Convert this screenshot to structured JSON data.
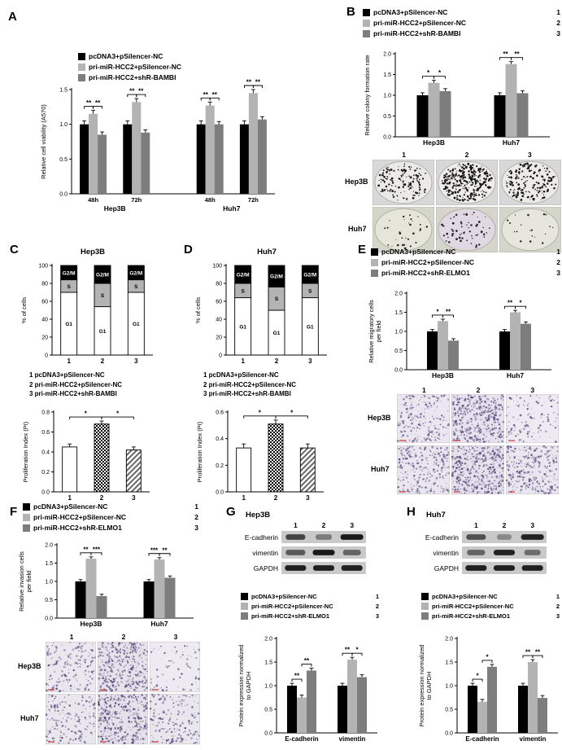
{
  "figure": {
    "bg": "#ffffff"
  },
  "colors": {
    "series1": "#000000",
    "series2": "#b3b3b3",
    "series3": "#7d7d7d",
    "axis": "#000000",
    "red_scale": "#cc3333"
  },
  "panels": {
    "A": {
      "label": "A",
      "legend": [
        {
          "color": "#000000",
          "label": "pcDNA3+pSilencer-NC"
        },
        {
          "color": "#b3b3b3",
          "label": "pri-miR-HCC2+pSilencer-NC"
        },
        {
          "color": "#7d7d7d",
          "label": "pri-miR-HCC2+shR-BAMBI"
        }
      ]
    },
    "B": {
      "label": "B",
      "legend": [
        {
          "color": "#000000",
          "label": "pcDNA3+pSilencer-NC",
          "num": "1"
        },
        {
          "color": "#b3b3b3",
          "label": "pri-miR-HCC2+pSilencer-NC",
          "num": "2"
        },
        {
          "color": "#7d7d7d",
          "label": "pri-miR-HCC2+shR-BAMBI",
          "num": "3"
        }
      ],
      "images": {
        "col_nums": [
          "1",
          "2",
          "3"
        ],
        "rows": [
          {
            "label": "Hep3B",
            "cells": [
              {
                "kind": "colony",
                "bg": "#d8d8d8",
                "dish": "#eceae6",
                "dot_color": "#151515",
                "count": 150,
                "seed": 11
              },
              {
                "kind": "colony",
                "bg": "#d8d8d8",
                "dish": "#efeeec",
                "dot_color": "#151515",
                "count": 330,
                "seed": 22
              },
              {
                "kind": "colony",
                "bg": "#d8d8d8",
                "dish": "#ecebe8",
                "dot_color": "#151515",
                "count": 170,
                "seed": 33
              }
            ]
          },
          {
            "label": "Huh7",
            "cells": [
              {
                "kind": "colony",
                "bg": "#d3d7c9",
                "dish": "#e6e5da",
                "dot_color": "#222222",
                "count": 30,
                "seed": 44
              },
              {
                "kind": "colony",
                "bg": "#d6d5cc",
                "dish": "#e0d8e2",
                "dot_color": "#222222",
                "count": 60,
                "seed": 55
              },
              {
                "kind": "colony",
                "bg": "#d3d7c9",
                "dish": "#e7e6dc",
                "dot_color": "#222222",
                "count": 20,
                "seed": 66
              }
            ]
          }
        ]
      }
    },
    "C": {
      "label": "C",
      "title": "Hep3B",
      "conditions": [
        "1 pcDNA3+pSilencer-NC",
        "2 pri-miR-HCC2+pSilencer-NC",
        "3 pri-miR-HCC2+shR-BAMBI"
      ]
    },
    "D": {
      "label": "D",
      "title": "Huh7",
      "conditions": [
        "1 pcDNA3+pSilencer-NC",
        "2 pri-miR-HCC2+pSilencer-NC",
        "3 pri-miR-HCC2+shR-BAMBI"
      ]
    },
    "E": {
      "label": "E",
      "legend": [
        {
          "color": "#000000",
          "label": "pcDNA3+pSilencer-NC",
          "num": "1"
        },
        {
          "color": "#b3b3b3",
          "label": "pri-miR-HCC2+pSilencer-NC",
          "num": "2"
        },
        {
          "color": "#7d7d7d",
          "label": "pri-miR-HCC2+shR-ELMO1",
          "num": "3"
        }
      ],
      "images": {
        "col_nums": [
          "1",
          "2",
          "3"
        ],
        "rows": [
          {
            "label": "Hep3B",
            "cells": [
              {
                "kind": "cells",
                "bg": "#eae7f0",
                "dot_color": "#5a4d7e",
                "count": 220,
                "seed": 101
              },
              {
                "kind": "cells",
                "bg": "#e6e2ee",
                "dot_color": "#554878",
                "count": 430,
                "seed": 102
              },
              {
                "kind": "cells",
                "bg": "#edeaf2",
                "dot_color": "#5a4d7e",
                "count": 120,
                "seed": 103
              }
            ]
          },
          {
            "label": "Huh7",
            "cells": [
              {
                "kind": "cells",
                "bg": "#e9e6ef",
                "dot_color": "#5a4d7e",
                "count": 260,
                "seed": 104
              },
              {
                "kind": "cells",
                "bg": "#e5e1ec",
                "dot_color": "#554878",
                "count": 440,
                "seed": 105
              },
              {
                "kind": "cells",
                "bg": "#e9e6ef",
                "dot_color": "#5a4d7e",
                "count": 300,
                "seed": 106
              }
            ]
          }
        ]
      }
    },
    "F": {
      "label": "F",
      "legend": [
        {
          "color": "#000000",
          "label": "pcDNA3+pSilencer-NC",
          "num": "1"
        },
        {
          "color": "#b3b3b3",
          "label": "pri-miR-HCC2+pSilencer-NC",
          "num": "2"
        },
        {
          "color": "#7d7d7d",
          "label": "pri-miR-HCC2+shR-ELMO1",
          "num": "3"
        }
      ],
      "images": {
        "col_nums": [
          "1",
          "2",
          "3"
        ],
        "rows": [
          {
            "label": "Hep3B",
            "cells": [
              {
                "kind": "cells",
                "bg": "#eae7ef",
                "dot_color": "#5a4d7e",
                "count": 180,
                "seed": 201
              },
              {
                "kind": "cells",
                "bg": "#e6e2ec",
                "dot_color": "#554878",
                "count": 400,
                "seed": 202
              },
              {
                "kind": "cells",
                "bg": "#edeaf1",
                "dot_color": "#5a4d7e",
                "count": 70,
                "seed": 203
              }
            ]
          },
          {
            "label": "Huh7",
            "cells": [
              {
                "kind": "cells",
                "bg": "#e9e6ee",
                "dot_color": "#5a4d7e",
                "count": 170,
                "seed": 204
              },
              {
                "kind": "cells",
                "bg": "#e5e1eb",
                "dot_color": "#554878",
                "count": 380,
                "seed": 205
              },
              {
                "kind": "cells",
                "bg": "#e9e6ee",
                "dot_color": "#5a4d7e",
                "count": 200,
                "seed": 206
              }
            ]
          }
        ]
      }
    },
    "G": {
      "label": "G",
      "title": "Hep3B",
      "blot": {
        "lane_nums": [
          "1",
          "2",
          "3"
        ],
        "rows": [
          {
            "label": "E-cadherin",
            "intensities": [
              0.72,
              0.42,
              0.95
            ],
            "widths": [
              24,
              20,
              28
            ]
          },
          {
            "label": "vimentin",
            "intensities": [
              0.6,
              0.95,
              0.55
            ],
            "widths": [
              24,
              27,
              22
            ]
          },
          {
            "label": "GAPDH",
            "intensities": [
              0.92,
              0.92,
              0.92
            ],
            "widths": [
              26,
              26,
              26
            ]
          }
        ]
      },
      "legend": [
        {
          "color": "#000000",
          "label": "pcDNA3+pSilencer-NC",
          "num": "1"
        },
        {
          "color": "#b3b3b3",
          "label": "pri-miR-HCC2+pSilencer-NC",
          "num": "2"
        },
        {
          "color": "#7d7d7d",
          "label": "pri-miR-HCC2+shR-ELMO1",
          "num": "3"
        }
      ]
    },
    "H": {
      "label": "H",
      "title": "Huh7",
      "blot": {
        "lane_nums": [
          "1",
          "2",
          "3"
        ],
        "rows": [
          {
            "label": "E-cadherin",
            "intensities": [
              0.65,
              0.35,
              0.9
            ],
            "widths": [
              24,
              18,
              28
            ]
          },
          {
            "label": "vimentin",
            "intensities": [
              0.55,
              0.9,
              0.5
            ],
            "widths": [
              22,
              26,
              20
            ]
          },
          {
            "label": "GAPDH",
            "intensities": [
              0.92,
              0.92,
              0.92
            ],
            "widths": [
              26,
              26,
              26
            ]
          }
        ]
      },
      "legend": [
        {
          "color": "#000000",
          "label": "pcDNA3+pSilencer-NC",
          "num": "1"
        },
        {
          "color": "#b3b3b3",
          "label": "pri-miR-HCC2+pSilencer-NC",
          "num": "2"
        },
        {
          "color": "#7d7d7d",
          "label": "pri-miR-HCC2+shR-ELMO1",
          "num": "3"
        }
      ]
    }
  },
  "chart_data": [
    {
      "id": "A",
      "type": "bar",
      "ylabel": "Relative cell viability (A570)",
      "ylim": [
        0,
        1.5
      ],
      "yticks": [
        0,
        0.5,
        1.0,
        1.5
      ],
      "categories": [
        "48h",
        "72h",
        "48h",
        "72h"
      ],
      "supergroups": [
        {
          "label": "Hep3B",
          "from": 0,
          "to": 1
        },
        {
          "label": "Huh7",
          "from": 2,
          "to": 3
        }
      ],
      "gap_after": [
        1
      ],
      "series": [
        {
          "name": "pcDNA3+pSilencer-NC",
          "color": "#000000",
          "values": [
            1.0,
            1.0,
            1.0,
            1.0
          ],
          "err": 0.05
        },
        {
          "name": "pri-miR-HCC2+pSilencer-NC",
          "color": "#b3b3b3",
          "values": [
            1.15,
            1.32,
            1.27,
            1.45
          ],
          "err": 0.05
        },
        {
          "name": "pri-miR-HCC2+shR-BAMBI",
          "color": "#7d7d7d",
          "values": [
            0.85,
            0.88,
            1.0,
            1.07
          ],
          "err": 0.04
        }
      ],
      "sig_within": [
        [
          "**",
          "**"
        ],
        [
          "**",
          "**"
        ],
        [
          "**",
          "**"
        ],
        [
          "**",
          "**"
        ]
      ]
    },
    {
      "id": "B",
      "type": "bar",
      "ylabel": "Relative colony formation rate",
      "ylim": [
        0,
        2.0
      ],
      "yticks": [
        0,
        0.5,
        1.0,
        1.5,
        2.0
      ],
      "categories": [
        "Hep3B",
        "Huh7"
      ],
      "series": [
        {
          "name": "pcDNA3+pSilencer-NC",
          "color": "#000000",
          "values": [
            1.0,
            1.0
          ],
          "err": 0.06
        },
        {
          "name": "pri-miR-HCC2+pSilencer-NC",
          "color": "#b3b3b3",
          "values": [
            1.3,
            1.75
          ],
          "err": 0.06
        },
        {
          "name": "pri-miR-HCC2+shR-BAMBI",
          "color": "#7d7d7d",
          "values": [
            1.1,
            1.05
          ],
          "err": 0.06
        }
      ],
      "sig_within": [
        [
          "*",
          "*"
        ],
        [
          "**",
          "**"
        ]
      ]
    },
    {
      "id": "C_cycle",
      "type": "stacked-bar",
      "title": "Hep3B",
      "ylabel": "% of cells",
      "ylim": [
        0,
        100
      ],
      "yticks": [
        0,
        20,
        40,
        60,
        80,
        100
      ],
      "categories": [
        "1",
        "2",
        "3"
      ],
      "series": [
        {
          "name": "G1",
          "color": "#ffffff",
          "text_color": "#000000",
          "values": [
            70,
            54,
            70
          ]
        },
        {
          "name": "S",
          "color": "#b3b3b3",
          "text_color": "#000000",
          "values": [
            14,
            26,
            14
          ]
        },
        {
          "name": "G2/M",
          "color": "#000000",
          "text_color": "#ffffff",
          "values": [
            16,
            20,
            16
          ]
        }
      ]
    },
    {
      "id": "C_pi",
      "type": "bar",
      "ylabel": "Proliferation Index (PI)",
      "ylim": [
        0,
        0.8
      ],
      "yticks": [
        0,
        0.2,
        0.4,
        0.6,
        0.8
      ],
      "categories": [
        "1",
        "2",
        "3"
      ],
      "series": [
        {
          "name": "PI",
          "values": [
            0.45,
            0.68,
            0.42
          ],
          "err": 0.03
        }
      ],
      "patterns": [
        "plain",
        "checker",
        "diag"
      ],
      "sig_across": [
        {
          "a": 0,
          "b": 1,
          "label": "*"
        },
        {
          "a": 1,
          "b": 2,
          "label": "*"
        }
      ]
    },
    {
      "id": "D_cycle",
      "type": "stacked-bar",
      "title": "Huh7",
      "ylabel": "% of cells",
      "ylim": [
        0,
        100
      ],
      "yticks": [
        0,
        20,
        40,
        60,
        80,
        100
      ],
      "categories": [
        "1",
        "2",
        "3"
      ],
      "series": [
        {
          "name": "G1",
          "color": "#ffffff",
          "text_color": "#000000",
          "values": [
            64,
            50,
            64
          ]
        },
        {
          "name": "S",
          "color": "#b3b3b3",
          "text_color": "#000000",
          "values": [
            16,
            26,
            16
          ]
        },
        {
          "name": "G2/M",
          "color": "#000000",
          "text_color": "#ffffff",
          "values": [
            20,
            24,
            20
          ]
        }
      ]
    },
    {
      "id": "D_pi",
      "type": "bar",
      "ylabel": "Proliferation Index (PI)",
      "ylim": [
        0,
        0.6
      ],
      "yticks": [
        0,
        0.2,
        0.4,
        0.6
      ],
      "categories": [
        "1",
        "2",
        "3"
      ],
      "series": [
        {
          "name": "PI",
          "values": [
            0.33,
            0.51,
            0.33
          ],
          "err": 0.03
        }
      ],
      "patterns": [
        "plain",
        "checker",
        "diag"
      ],
      "sig_across": [
        {
          "a": 0,
          "b": 1,
          "label": "*"
        },
        {
          "a": 1,
          "b": 2,
          "label": "*"
        }
      ]
    },
    {
      "id": "E",
      "type": "bar",
      "ylabel": "Relative migratory cells\nper field",
      "ylim": [
        0,
        2.0
      ],
      "yticks": [
        0,
        0.5,
        1.0,
        1.5,
        2.0
      ],
      "categories": [
        "Hep3B",
        "Huh7"
      ],
      "series": [
        {
          "name": "pcDNA3+pSilencer-NC",
          "color": "#000000",
          "values": [
            1.0,
            1.0
          ],
          "err": 0.05
        },
        {
          "name": "pri-miR-HCC2+pSilencer-NC",
          "color": "#b3b3b3",
          "values": [
            1.27,
            1.5
          ],
          "err": 0.05
        },
        {
          "name": "pri-miR-HCC2+shR-ELMO1",
          "color": "#7d7d7d",
          "values": [
            0.76,
            1.2
          ],
          "err": 0.05
        }
      ],
      "sig_within": [
        [
          "*",
          "**"
        ],
        [
          "**",
          "*"
        ]
      ]
    },
    {
      "id": "F",
      "type": "bar",
      "ylabel": "Relative invasion cells\nper field",
      "ylim": [
        0,
        2.0
      ],
      "yticks": [
        0,
        0.5,
        1.0,
        1.5,
        2.0
      ],
      "categories": [
        "Hep3B",
        "Huh7"
      ],
      "series": [
        {
          "name": "pcDNA3+pSilencer-NC",
          "color": "#000000",
          "values": [
            1.0,
            1.0
          ],
          "err": 0.05
        },
        {
          "name": "pri-miR-HCC2+pSilencer-NC",
          "color": "#b3b3b3",
          "values": [
            1.62,
            1.6
          ],
          "err": 0.05
        },
        {
          "name": "pri-miR-HCC2+shR-ELMO1",
          "color": "#7d7d7d",
          "values": [
            0.6,
            1.1
          ],
          "err": 0.05
        }
      ],
      "sig_within": [
        [
          "**",
          "***"
        ],
        [
          "***",
          "**"
        ]
      ]
    },
    {
      "id": "G",
      "type": "bar",
      "ylabel": "Protein expression normalized\nto GAPDH",
      "ylim": [
        0,
        2.0
      ],
      "yticks": [
        0,
        0.5,
        1.0,
        1.5,
        2.0
      ],
      "categories": [
        "E-cadherin",
        "vimentin"
      ],
      "series": [
        {
          "name": "pcDNA3+pSilencer-NC",
          "color": "#000000",
          "values": [
            1.0,
            1.0
          ],
          "err": 0.05
        },
        {
          "name": "pri-miR-HCC2+pSilencer-NC",
          "color": "#b3b3b3",
          "values": [
            0.75,
            1.55
          ],
          "err": 0.05
        },
        {
          "name": "pri-miR-HCC2+shR-ELMO1",
          "color": "#7d7d7d",
          "values": [
            1.32,
            1.18
          ],
          "err": 0.05
        }
      ],
      "sig_within": [
        [
          "**",
          "**"
        ],
        [
          "**",
          "*"
        ]
      ]
    },
    {
      "id": "H",
      "type": "bar",
      "ylabel": "Protein expression normalized\nto GAPDH",
      "ylim": [
        0,
        2.0
      ],
      "yticks": [
        0,
        0.5,
        1.0,
        1.5,
        2.0
      ],
      "categories": [
        "E-cadherin",
        "vimentin"
      ],
      "series": [
        {
          "name": "pcDNA3+pSilencer-NC",
          "color": "#000000",
          "values": [
            1.0,
            1.0
          ],
          "err": 0.05
        },
        {
          "name": "pri-miR-HCC2+pSilencer-NC",
          "color": "#b3b3b3",
          "values": [
            0.66,
            1.5
          ],
          "err": 0.05
        },
        {
          "name": "pri-miR-HCC2+shR-ELMO1",
          "color": "#7d7d7d",
          "values": [
            1.4,
            0.74
          ],
          "err": 0.05
        }
      ],
      "sig_within": [
        [
          "*",
          "*"
        ],
        [
          "**",
          "**"
        ]
      ]
    }
  ]
}
